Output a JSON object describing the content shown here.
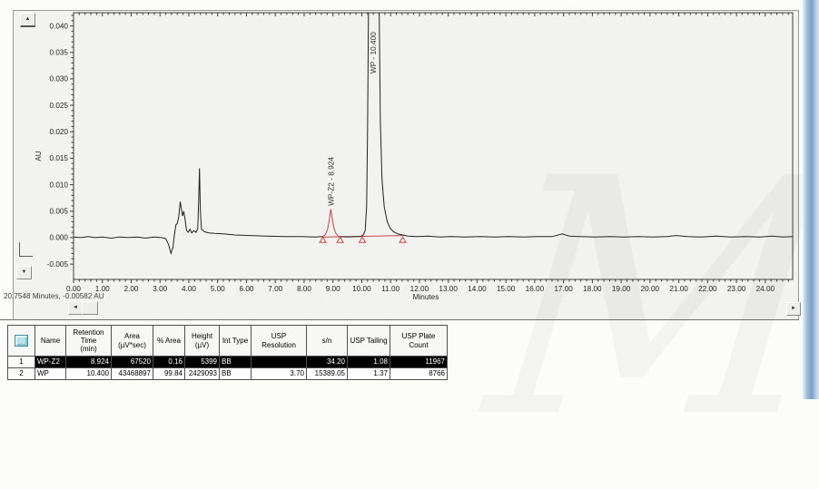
{
  "watermark": "M",
  "status_text": "20.7548 Minutes, -0.00582 AU",
  "icons": {
    "scroll_up": "▲",
    "scroll_down": "▼",
    "scroll_left": "◄",
    "scroll_right": "►"
  },
  "chart_data": {
    "type": "line",
    "title": "",
    "xlabel": "Minutes",
    "ylabel": "AU",
    "xlim": [
      0,
      24.95
    ],
    "ylim": [
      -0.0079,
      0.0425
    ],
    "grid": false,
    "legend": false,
    "xticks": [
      {
        "v": 0,
        "label": "0.00"
      },
      {
        "v": 1,
        "label": "1.00"
      },
      {
        "v": 2,
        "label": "2.00"
      },
      {
        "v": 3,
        "label": "3.00"
      },
      {
        "v": 4,
        "label": "4.00"
      },
      {
        "v": 5,
        "label": "5.00"
      },
      {
        "v": 6,
        "label": "6.00"
      },
      {
        "v": 7,
        "label": "7.00"
      },
      {
        "v": 8,
        "label": "8.00"
      },
      {
        "v": 9,
        "label": "9.00"
      },
      {
        "v": 10,
        "label": "10.00"
      },
      {
        "v": 11,
        "label": "11.00"
      },
      {
        "v": 12,
        "label": "12.00"
      },
      {
        "v": 13,
        "label": "13.00"
      },
      {
        "v": 14,
        "label": "14.00"
      },
      {
        "v": 15,
        "label": "15.00"
      },
      {
        "v": 16,
        "label": "16.00"
      },
      {
        "v": 17,
        "label": "17.00"
      },
      {
        "v": 18,
        "label": "18.00"
      },
      {
        "v": 19,
        "label": "19.00"
      },
      {
        "v": 20,
        "label": "20.00"
      },
      {
        "v": 21,
        "label": "21.00"
      },
      {
        "v": 22,
        "label": "22.00"
      },
      {
        "v": 23,
        "label": "23.00"
      },
      {
        "v": 24,
        "label": "24.00"
      }
    ],
    "yticks": [
      {
        "v": 0.04,
        "label": "0.040"
      },
      {
        "v": 0.035,
        "label": "0.035"
      },
      {
        "v": 0.03,
        "label": "0.030"
      },
      {
        "v": 0.025,
        "label": "0.025"
      },
      {
        "v": 0.02,
        "label": "0.020"
      },
      {
        "v": 0.015,
        "label": "0.015"
      },
      {
        "v": 0.01,
        "label": "0.010"
      },
      {
        "v": 0.005,
        "label": "0.005"
      },
      {
        "v": 0.0,
        "label": "0.000"
      },
      {
        "v": -0.005,
        "label": "-0.005"
      }
    ],
    "series": [
      {
        "name": "trace-pre-integration",
        "color": "#222222",
        "points": [
          [
            0,
            0.0001
          ],
          [
            0.25,
            0
          ],
          [
            0.5,
            0.0002
          ],
          [
            0.75,
            0
          ],
          [
            1.0,
            0.0001
          ],
          [
            1.3,
            -0.0001
          ],
          [
            1.6,
            0.0001
          ],
          [
            1.9,
            0
          ],
          [
            2.2,
            0.0001
          ],
          [
            2.5,
            -0.0001
          ],
          [
            2.8,
            0.0001
          ],
          [
            3.05,
            0
          ],
          [
            3.2,
            -0.0002
          ],
          [
            3.3,
            -0.0014
          ],
          [
            3.38,
            -0.003
          ],
          [
            3.45,
            -0.0018
          ],
          [
            3.5,
            0.0005
          ],
          [
            3.55,
            0.0024
          ],
          [
            3.6,
            0.0027
          ],
          [
            3.65,
            0.004
          ],
          [
            3.7,
            0.0068
          ],
          [
            3.74,
            0.0055
          ],
          [
            3.78,
            0.0041
          ],
          [
            3.82,
            0.005
          ],
          [
            3.87,
            0.0035
          ],
          [
            3.92,
            0.0014
          ],
          [
            3.98,
            0.001
          ],
          [
            4.04,
            0.0016
          ],
          [
            4.1,
            0.0009
          ],
          [
            4.17,
            0.0013
          ],
          [
            4.25,
            0.001
          ],
          [
            4.31,
            0.0017
          ],
          [
            4.345,
            0.0075
          ],
          [
            4.37,
            0.0131
          ],
          [
            4.4,
            0.005
          ],
          [
            4.44,
            0.0016
          ],
          [
            4.55,
            0.0011
          ],
          [
            4.7,
            0.0009
          ],
          [
            4.9,
            0.0008
          ],
          [
            5.2,
            0.0007
          ],
          [
            5.6,
            0.0005
          ],
          [
            6.1,
            0.0004
          ],
          [
            6.7,
            0.0003
          ],
          [
            7.3,
            0.0002
          ],
          [
            7.9,
            0.0002
          ],
          [
            8.4,
            0.0001
          ],
          [
            8.65,
            0.0002
          ]
        ]
      },
      {
        "name": "integrated-peak-wp-z2",
        "color": "#c9453f",
        "points": [
          [
            8.65,
            0.0002
          ],
          [
            8.74,
            0.0006
          ],
          [
            8.81,
            0.0015
          ],
          [
            8.87,
            0.0033
          ],
          [
            8.924,
            0.0054
          ],
          [
            8.97,
            0.0039
          ],
          [
            9.03,
            0.0019
          ],
          [
            9.1,
            0.0008
          ],
          [
            9.18,
            0.0003
          ],
          [
            9.25,
            0.0002
          ]
        ]
      },
      {
        "name": "trace-post-integration",
        "color": "#222222",
        "points": [
          [
            9.25,
            0.0002
          ],
          [
            9.5,
            0.0001
          ],
          [
            9.75,
            0.0002
          ],
          [
            9.95,
            0.0002
          ],
          [
            10.05,
            0.0005
          ],
          [
            10.12,
            0.0013
          ],
          [
            10.17,
            0.006
          ],
          [
            10.2,
            0.02
          ],
          [
            10.235,
            0.045
          ],
          [
            10.6,
            0.045
          ],
          [
            10.645,
            0.022
          ],
          [
            10.7,
            0.011
          ],
          [
            10.78,
            0.0058
          ],
          [
            10.88,
            0.0031
          ],
          [
            10.98,
            0.0018
          ],
          [
            11.1,
            0.0011
          ],
          [
            11.25,
            0.0007
          ],
          [
            11.42,
            0.0005
          ],
          [
            11.6,
            0.0003
          ],
          [
            11.9,
            0.0002
          ],
          [
            12.3,
            0.0003
          ],
          [
            12.7,
            0.0001
          ],
          [
            13.1,
            0.0002
          ],
          [
            13.6,
            0.0001
          ],
          [
            14.1,
            0.0002
          ],
          [
            14.6,
            0.0001
          ],
          [
            15.1,
            0.0002
          ],
          [
            15.6,
            0.0001
          ],
          [
            16.1,
            0.0002
          ],
          [
            16.6,
            0.0002
          ],
          [
            16.95,
            0.0007
          ],
          [
            17.2,
            0.0003
          ],
          [
            17.6,
            0.0002
          ],
          [
            18.1,
            0.0001
          ],
          [
            18.6,
            0.0002
          ],
          [
            19.1,
            0.0001
          ],
          [
            19.6,
            0.0002
          ],
          [
            20.1,
            0.0001
          ],
          [
            20.6,
            0.0002
          ],
          [
            20.9,
            0.0004
          ],
          [
            21.3,
            0.0002
          ],
          [
            21.8,
            0.0001
          ],
          [
            22.3,
            0.0003
          ],
          [
            22.8,
            0.0001
          ],
          [
            23.3,
            0.0002
          ],
          [
            23.8,
            0.0001
          ],
          [
            24.25,
            0.0003
          ],
          [
            24.6,
            0.0001
          ],
          [
            24.95,
            0.0002
          ]
        ]
      }
    ],
    "integration_baseline": {
      "color": "#c9453f",
      "from": [
        8.65,
        0.0001
      ],
      "to": [
        11.42,
        0.0004
      ],
      "marker_times": [
        8.65,
        9.25,
        10.02,
        11.42
      ]
    },
    "peak_labels": [
      {
        "text": "WP-Z2 - 8.924",
        "t": 8.924,
        "anchor_au": 0.006
      },
      {
        "text": "WP - 10.400",
        "t": 10.4,
        "anchor_au": 0.031
      }
    ]
  },
  "table": {
    "row_header_w": 25,
    "columns": [
      {
        "label": "Name",
        "w": 29,
        "align": "left"
      },
      {
        "label": "Retention\nTime\n(min)",
        "w": 45,
        "align": "right"
      },
      {
        "label": "Area\n(µV*sec)",
        "w": 41,
        "align": "right"
      },
      {
        "label": "% Area",
        "w": 30,
        "align": "right"
      },
      {
        "label": "Height\n(µV)",
        "w": 33,
        "align": "right"
      },
      {
        "label": "Int Type",
        "w": 30,
        "align": "left"
      },
      {
        "label": "USP Resolution",
        "w": 56,
        "align": "right"
      },
      {
        "label": "s/n",
        "w": 40,
        "align": "right"
      },
      {
        "label": "USP Tailing",
        "w": 42,
        "align": "right"
      },
      {
        "label": "USP Plate Count",
        "w": 58,
        "align": "right"
      }
    ],
    "rows": [
      {
        "num": "1",
        "selected": true,
        "cells": [
          "WP-Z2",
          "8.924",
          "67520",
          "0.16",
          "5399",
          "BB",
          "",
          "34.20",
          "1.08",
          "11967"
        ]
      },
      {
        "num": "2",
        "selected": false,
        "cells": [
          "WP",
          "10.400",
          "43468897",
          "99.84",
          "2429093",
          "BB",
          "3.70",
          "15389.05",
          "1.37",
          "8766"
        ]
      }
    ]
  }
}
